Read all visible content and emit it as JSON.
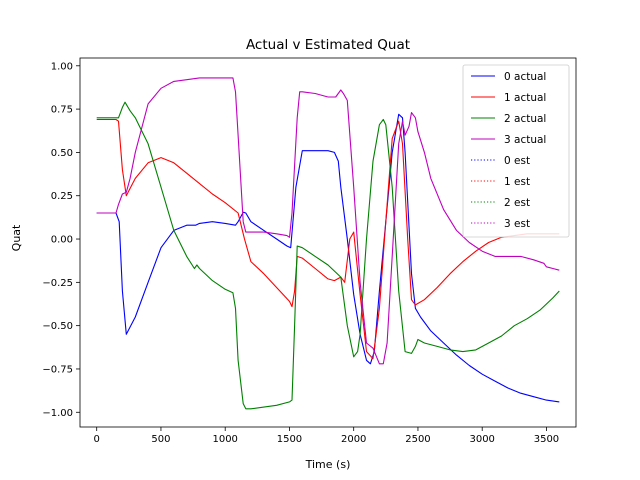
{
  "chart_data": {
    "type": "line",
    "title": "Actual v Estimated Quat",
    "xlabel": "Time (s)",
    "ylabel": "Quat",
    "xlim": [
      -130,
      3730
    ],
    "ylim": [
      -1.085,
      1.045
    ],
    "xticks": [
      0,
      500,
      1000,
      1500,
      2000,
      2500,
      3000,
      3500
    ],
    "xtick_labels": [
      "0",
      "500",
      "1000",
      "1500",
      "2000",
      "2500",
      "3000",
      "3500"
    ],
    "yticks": [
      -1.0,
      -0.75,
      -0.5,
      -0.25,
      0.0,
      0.25,
      0.5,
      0.75,
      1.0
    ],
    "ytick_labels": [
      "−1.00",
      "−0.75",
      "−0.50",
      "−0.25",
      "0.00",
      "0.25",
      "0.50",
      "0.75",
      "1.00"
    ],
    "grid": false,
    "legend_position": "top-right",
    "series": [
      {
        "name": "0 actual",
        "color": "#0000ff",
        "style": "solid",
        "x": [
          0,
          150,
          175,
          200,
          230,
          300,
          400,
          500,
          600,
          700,
          770,
          800,
          900,
          1000,
          1080,
          1100,
          1140,
          1160,
          1200,
          1300,
          1400,
          1480,
          1510,
          1550,
          1600,
          1700,
          1800,
          1850,
          1880,
          1900,
          1950,
          2000,
          2050,
          2100,
          2130,
          2160,
          2200,
          2250,
          2300,
          2350,
          2380,
          2400,
          2450,
          2480,
          2520,
          2600,
          2700,
          2800,
          2900,
          3000,
          3100,
          3200,
          3300,
          3400,
          3500,
          3600
        ],
        "y": [
          0.15,
          0.15,
          0.1,
          -0.3,
          -0.55,
          -0.45,
          -0.25,
          -0.05,
          0.05,
          0.08,
          0.08,
          0.09,
          0.1,
          0.09,
          0.08,
          0.1,
          0.155,
          0.15,
          0.1,
          0.05,
          0.0,
          -0.04,
          -0.05,
          0.3,
          0.51,
          0.51,
          0.51,
          0.5,
          0.45,
          0.3,
          0.0,
          -0.32,
          -0.55,
          -0.7,
          -0.72,
          -0.65,
          -0.3,
          0.1,
          0.5,
          0.72,
          0.7,
          0.5,
          -0.2,
          -0.4,
          -0.45,
          -0.53,
          -0.6,
          -0.67,
          -0.73,
          -0.78,
          -0.82,
          -0.86,
          -0.89,
          -0.91,
          -0.93,
          -0.94
        ]
      },
      {
        "name": "1 actual",
        "color": "#ff0000",
        "style": "solid",
        "x": [
          0,
          150,
          170,
          200,
          230,
          300,
          400,
          500,
          600,
          700,
          800,
          900,
          1000,
          1100,
          1150,
          1200,
          1300,
          1400,
          1500,
          1520,
          1540,
          1560,
          1600,
          1700,
          1800,
          1850,
          1900,
          1930,
          1970,
          2000,
          2050,
          2100,
          2150,
          2200,
          2250,
          2300,
          2350,
          2380,
          2420,
          2450,
          2480,
          2550,
          2650,
          2750,
          2850,
          2950,
          3050,
          3150,
          3250,
          3350,
          3450,
          3550,
          3600
        ],
        "y": [
          0.69,
          0.69,
          0.68,
          0.4,
          0.25,
          0.35,
          0.44,
          0.47,
          0.44,
          0.38,
          0.32,
          0.26,
          0.21,
          0.15,
          0.0,
          -0.13,
          -0.2,
          -0.28,
          -0.36,
          -0.39,
          -0.3,
          -0.1,
          -0.11,
          -0.17,
          -0.23,
          -0.24,
          -0.22,
          -0.25,
          0.0,
          0.04,
          -0.32,
          -0.65,
          -0.69,
          -0.4,
          0.1,
          0.58,
          0.68,
          0.55,
          0.0,
          -0.35,
          -0.38,
          -0.35,
          -0.28,
          -0.2,
          -0.13,
          -0.07,
          -0.02,
          0.01,
          0.02,
          0.03,
          0.03,
          0.03,
          0.03
        ]
      },
      {
        "name": "2 actual",
        "color": "#008000",
        "style": "solid",
        "x": [
          0,
          150,
          170,
          200,
          220,
          260,
          300,
          400,
          500,
          600,
          700,
          760,
          780,
          800,
          900,
          1000,
          1060,
          1080,
          1100,
          1140,
          1160,
          1200,
          1300,
          1400,
          1500,
          1520,
          1540,
          1560,
          1600,
          1700,
          1800,
          1900,
          1950,
          2000,
          2030,
          2050,
          2100,
          2150,
          2200,
          2230,
          2250,
          2300,
          2350,
          2400,
          2450,
          2480,
          2500,
          2550,
          2650,
          2750,
          2850,
          2950,
          3050,
          3150,
          3250,
          3350,
          3450,
          3550,
          3600
        ],
        "y": [
          0.7,
          0.7,
          0.7,
          0.76,
          0.79,
          0.74,
          0.7,
          0.55,
          0.3,
          0.05,
          -0.1,
          -0.17,
          -0.15,
          -0.17,
          -0.24,
          -0.29,
          -0.31,
          -0.4,
          -0.7,
          -0.95,
          -0.98,
          -0.98,
          -0.97,
          -0.96,
          -0.94,
          -0.93,
          -0.5,
          -0.04,
          -0.05,
          -0.1,
          -0.15,
          -0.22,
          -0.5,
          -0.68,
          -0.65,
          -0.55,
          0.0,
          0.45,
          0.66,
          0.69,
          0.66,
          0.3,
          -0.3,
          -0.65,
          -0.66,
          -0.62,
          -0.58,
          -0.6,
          -0.62,
          -0.64,
          -0.65,
          -0.64,
          -0.6,
          -0.56,
          -0.5,
          -0.46,
          -0.41,
          -0.34,
          -0.3
        ]
      },
      {
        "name": "3 actual",
        "color": "#bf00bf",
        "style": "solid",
        "x": [
          0,
          150,
          170,
          200,
          230,
          260,
          300,
          400,
          500,
          600,
          700,
          800,
          900,
          1000,
          1060,
          1080,
          1100,
          1140,
          1160,
          1200,
          1300,
          1400,
          1480,
          1500,
          1520,
          1560,
          1580,
          1600,
          1700,
          1800,
          1860,
          1900,
          1920,
          1950,
          2000,
          2050,
          2100,
          2150,
          2200,
          2230,
          2260,
          2300,
          2350,
          2380,
          2400,
          2430,
          2450,
          2480,
          2500,
          2550,
          2600,
          2700,
          2800,
          2900,
          3000,
          3100,
          3200,
          3300,
          3400,
          3480,
          3500,
          3550,
          3600
        ],
        "y": [
          0.15,
          0.15,
          0.2,
          0.26,
          0.27,
          0.35,
          0.5,
          0.78,
          0.87,
          0.91,
          0.92,
          0.93,
          0.93,
          0.93,
          0.93,
          0.85,
          0.6,
          0.1,
          0.04,
          0.04,
          0.04,
          0.03,
          0.02,
          0.01,
          0.15,
          0.7,
          0.85,
          0.85,
          0.84,
          0.82,
          0.82,
          0.86,
          0.84,
          0.8,
          0.3,
          -0.25,
          -0.6,
          -0.63,
          -0.72,
          -0.72,
          -0.6,
          -0.1,
          0.55,
          0.68,
          0.6,
          0.65,
          0.73,
          0.7,
          0.62,
          0.5,
          0.35,
          0.17,
          0.05,
          -0.02,
          -0.07,
          -0.1,
          -0.1,
          -0.1,
          -0.12,
          -0.14,
          -0.16,
          -0.17,
          -0.18
        ]
      },
      {
        "name": "0 est",
        "color": "#0000ff",
        "style": "dotted"
      },
      {
        "name": "1 est",
        "color": "#ff0000",
        "style": "dotted"
      },
      {
        "name": "2 est",
        "color": "#008000",
        "style": "dotted"
      },
      {
        "name": "3 est",
        "color": "#bf00bf",
        "style": "dotted"
      }
    ]
  }
}
